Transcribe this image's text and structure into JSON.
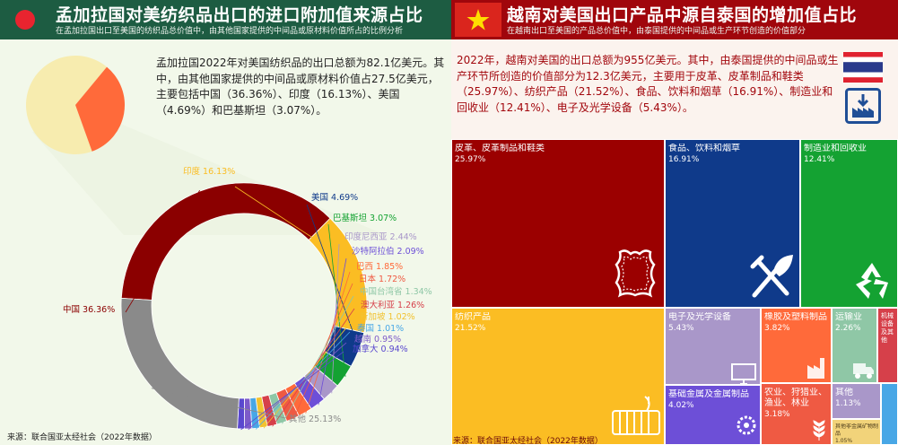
{
  "left": {
    "header": {
      "title": "孟加拉国对美纺织品出口的进口附加值来源占比",
      "subtitle": "在孟加拉国出口至美国的纺织品总价值中，由其他国家提供的中间品或原材料价值所占的比例分析"
    },
    "description": "孟加拉国2022年对美国纺织品的出口总额为82.1亿美元。其中，由其他国家提供的中间品或原材料价值占27.5亿美元，主要包括中国（36.36%）、印度（16.13%）、美国（4.69%）和巴基斯坦（3.07%）。",
    "source": "来源：联合国亚太经社会（2022年数据）",
    "colors": {
      "flag_green": "#1d5c42",
      "flag_red": "#e8242f",
      "pie_share": "#ff6a3a",
      "pie_rest": "#f7ecaf"
    }
  },
  "right": {
    "header": {
      "title": "越南对美国出口产品中源自泰国的增加值占比",
      "subtitle": "在越南出口至美国的产品总价值中，由泰国提供的中间品或生产环节创造的价值部分"
    },
    "description": "2022年，越南对美国的出口总额为955亿美元。其中，由泰国提供的中间品或生产环节所创造的价值部分为12.3亿美元，主要用于皮革、皮革制品和鞋类（25.97%）、纺织产品（21.52%）、食品、饮料和烟草（16.91%）、制造业和回收业（12.41%）、电子及光学设备（5.43%）。",
    "source": "来源：联合国亚太经社会（2022年数据）",
    "colors": {
      "flag_red": "#da251d",
      "flag_star": "#ffde00",
      "thai_red": "#e02230",
      "thai_blue": "#2a3a8c",
      "box_icon": "#1f4e96"
    },
    "icons": [
      "leather-icon",
      "utensils-icon",
      "recycle-icon",
      "yarn-icon",
      "monitor-icon",
      "factory-icon",
      "truck-icon",
      "gear-icon",
      "wheat-icon"
    ]
  },
  "chart_data": [
    {
      "type": "pie",
      "values": [
        33.5,
        66.5
      ]
    },
    {
      "type": "donut",
      "categories": [
        "中国",
        "印度",
        "美国",
        "巴基斯坦",
        "印度尼西亚",
        "沙特阿拉伯",
        "巴西",
        "日本",
        "中国台湾省",
        "澳大利亚",
        "新加坡",
        "泰国",
        "越南",
        "加拿大",
        "其他"
      ],
      "values": [
        36.36,
        16.13,
        4.69,
        3.07,
        2.44,
        2.09,
        1.85,
        1.72,
        1.34,
        1.26,
        1.02,
        1.01,
        0.95,
        0.94,
        25.13
      ],
      "labels": [
        "中国 36.36%",
        "印度 16.13%",
        "美国 4.69%",
        "巴基斯坦 3.07%",
        "印度尼西亚 2.44%",
        "沙特阿拉伯 2.09%",
        "巴西 1.85%",
        "日本 1.72%",
        "中国台湾省 1.34%",
        "澳大利亚 1.26%",
        "新加坡 1.02%",
        "泰国 1.01%",
        "越南 0.95%",
        "加拿大 0.94%",
        "其他 25.13%"
      ],
      "colors": [
        "#8b0000",
        "#fbbd23",
        "#0f3a8a",
        "#14a232",
        "#a997c9",
        "#6d4fd7",
        "#ff6a3a",
        "#ef5a43",
        "#8fc7a6",
        "#d6404a",
        "#f2c230",
        "#48a7e6",
        "#7d5bc9",
        "#5a48cf",
        "#8a8a8a"
      ]
    },
    {
      "type": "treemap",
      "categories": [
        "皮革、皮革制品和鞋类",
        "纺织产品",
        "食品、饮料和烟草",
        "制造业和回收业",
        "电子及光学设备",
        "橡胶及塑料制品",
        "运输业",
        "机械设备及其他",
        "基础金属及金属制品",
        "农业、狩猎业、渔业、林业",
        "其他",
        "其他非金属矿物制品"
      ],
      "values": [
        25.97,
        21.52,
        16.91,
        12.41,
        5.43,
        3.82,
        2.26,
        null,
        4.02,
        3.18,
        1.13,
        1.05
      ],
      "labels": [
        {
          "name": "皮革、皮革制品和鞋类",
          "pct": "25.97%"
        },
        {
          "name": "纺织产品",
          "pct": "21.52%"
        },
        {
          "name": "食品、饮料和烟草",
          "pct": "16.91%"
        },
        {
          "name": "制造业和回收业",
          "pct": "12.41%"
        },
        {
          "name": "电子及光学设备",
          "pct": "5.43%"
        },
        {
          "name": "橡胶及塑料制品",
          "pct": "3.82%"
        },
        {
          "name": "运输业",
          "pct": "2.26%"
        },
        {
          "name": "机械设备及其他",
          "pct": ""
        },
        {
          "name": "基础金属及金属制品",
          "pct": "4.02%"
        },
        {
          "name": "农业、狩猎业、渔业、林业",
          "pct": "3.18%"
        },
        {
          "name": "其他",
          "pct": "1.13%"
        },
        {
          "name": "其他非金属矿物制品",
          "pct": "1.05%"
        }
      ],
      "colors": [
        "#9b0000",
        "#fbbd23",
        "#0f3a8a",
        "#14a232",
        "#a997c9",
        "#ff6a3a",
        "#8fc7a6",
        "#d6404a",
        "#6d4fd7",
        "#ef5a43",
        "#a997c9",
        "#f2d37a"
      ]
    }
  ]
}
